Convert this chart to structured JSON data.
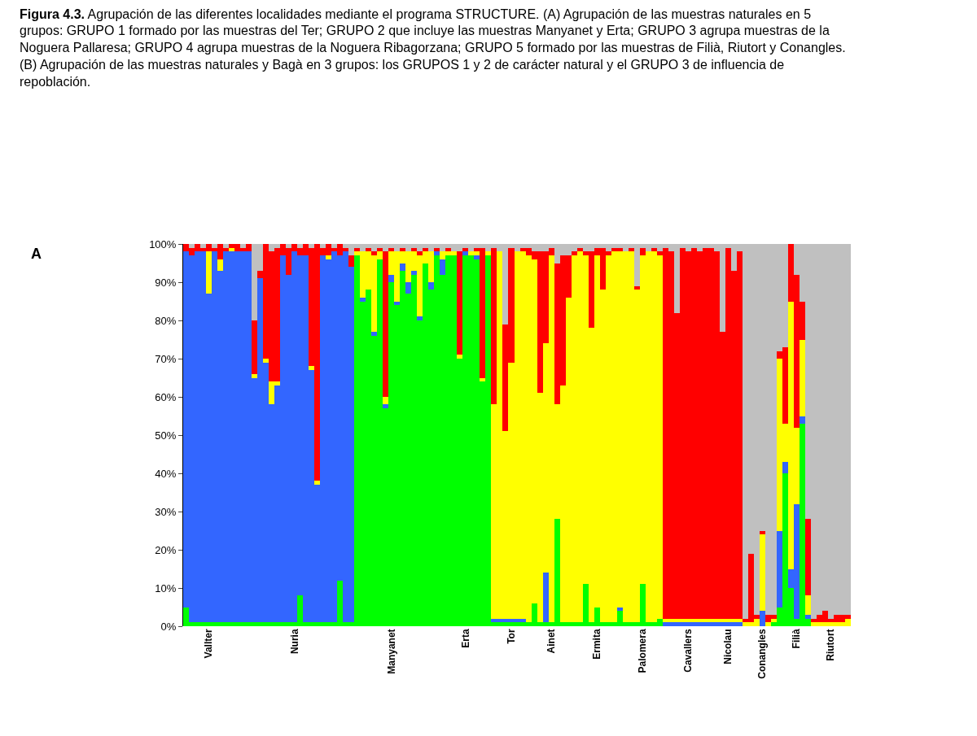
{
  "chart_data": {
    "type": "bar",
    "stacked": true,
    "title": "Figura 4.3. Agrupación de las diferentes localidades mediante el programa STRUCTURE. (A) Agrupación de las muestras naturales en 5 grupos: GRUPO 1 formado por las muestras del Ter; GRUPO 2 que incluye las muestras Manyanet y Erta; GRUPO 3 agrupa muestras de la Noguera Pallaresa; GRUPO 4 agrupa muestras de la Noguera Ribagorzana; GRUPO 5 formado por las muestras de Filià, Riutort y Conangles. (B) Agrupación de las muestras naturales y Bagà en 3 grupos: los GRUPOS 1 y 2 de carácter natural y el GRUPO 3 de influencia de repoblación.",
    "annotations": [
      "A"
    ],
    "categories": [
      null,
      null,
      null,
      null,
      "Vallter",
      null,
      null,
      null,
      null,
      null,
      null,
      null,
      null,
      null,
      null,
      null,
      null,
      null,
      null,
      "Nuria",
      null,
      null,
      null,
      null,
      null,
      null,
      null,
      null,
      null,
      null,
      null,
      null,
      null,
      null,
      null,
      null,
      "Manyanet",
      null,
      null,
      null,
      null,
      null,
      null,
      null,
      null,
      null,
      null,
      null,
      null,
      "Erta",
      null,
      null,
      null,
      null,
      null,
      null,
      null,
      "Tor",
      null,
      null,
      null,
      null,
      null,
      null,
      "Ainet",
      null,
      null,
      null,
      null,
      null,
      null,
      null,
      "Ermita",
      null,
      null,
      null,
      null,
      null,
      null,
      null,
      "Palomera",
      null,
      null,
      null,
      null,
      null,
      null,
      null,
      "Cavallers",
      null,
      null,
      null,
      null,
      null,
      null,
      "Nicolau",
      null,
      null,
      null,
      null,
      null,
      "Conangles",
      null,
      null,
      null,
      null,
      null,
      "Filià",
      null,
      null,
      null,
      null,
      null,
      "Riutort",
      null,
      null,
      null
    ],
    "series": [
      {
        "color": "#00ff00",
        "values": [
          5,
          1,
          1,
          1,
          1,
          1,
          1,
          1,
          1,
          1,
          1,
          1,
          1,
          1,
          1,
          1,
          1,
          1,
          1,
          1,
          8,
          1,
          1,
          1,
          1,
          1,
          1,
          12,
          1,
          1,
          97,
          85,
          88,
          76,
          96,
          57,
          90,
          84,
          93,
          87,
          92,
          80,
          95,
          88,
          97,
          92,
          97,
          97,
          70,
          97,
          97,
          96,
          64,
          97,
          1,
          1,
          1,
          1,
          1,
          1,
          1,
          6,
          1,
          1,
          1,
          28,
          1,
          1,
          1,
          1,
          11,
          1,
          5,
          1,
          1,
          1,
          4,
          1,
          1,
          1,
          11,
          1,
          1,
          2,
          0,
          0,
          0,
          0,
          0,
          0,
          0,
          0,
          0,
          0,
          0,
          0,
          0,
          0,
          0,
          0,
          0,
          0,
          0,
          1,
          5,
          40,
          10,
          2,
          53,
          2,
          0,
          0,
          0,
          0,
          0,
          0,
          0
        ]
      },
      {
        "color": "#3366ff",
        "values": [
          93,
          96,
          97,
          97,
          86,
          97,
          92,
          97,
          97,
          97,
          97,
          97,
          64,
          90,
          68,
          57,
          62,
          96,
          91,
          97,
          89,
          96,
          66,
          36,
          96,
          95,
          97,
          85,
          97,
          93,
          0,
          1,
          0,
          1,
          0,
          1,
          2,
          1,
          2,
          3,
          1,
          1,
          0,
          2,
          1,
          4,
          0,
          0,
          0,
          1,
          0,
          1,
          0,
          0,
          1,
          1,
          1,
          1,
          1,
          1,
          0,
          0,
          0,
          13,
          0,
          0,
          0,
          0,
          0,
          0,
          0,
          0,
          0,
          0,
          0,
          0,
          1,
          0,
          0,
          0,
          0,
          0,
          0,
          0,
          1,
          1,
          1,
          1,
          1,
          1,
          1,
          1,
          1,
          1,
          1,
          1,
          1,
          1,
          0,
          0,
          0,
          4,
          0,
          0,
          20,
          3,
          5,
          30,
          2,
          1,
          0,
          0,
          0,
          0,
          0,
          0,
          0
        ]
      },
      {
        "color": "#ffff00",
        "values": [
          0,
          0,
          0,
          0,
          11,
          0,
          3,
          0,
          1,
          0,
          0,
          0,
          1,
          0,
          1,
          6,
          1,
          0,
          0,
          0,
          0,
          0,
          1,
          1,
          0,
          1,
          0,
          0,
          0,
          0,
          1,
          12,
          10,
          20,
          2,
          2,
          6,
          13,
          3,
          8,
          5,
          16,
          3,
          8,
          0,
          2,
          1,
          1,
          1,
          0,
          1,
          1,
          1,
          1,
          56,
          96,
          49,
          67,
          96,
          96,
          96,
          90,
          60,
          60,
          96,
          30,
          62,
          85,
          96,
          97,
          86,
          77,
          92,
          87,
          96,
          97,
          93,
          97,
          97,
          87,
          86,
          97,
          97,
          95,
          1,
          1,
          1,
          1,
          1,
          1,
          1,
          1,
          1,
          1,
          1,
          1,
          1,
          1,
          1,
          1,
          2,
          20,
          1,
          1,
          45,
          10,
          70,
          20,
          20,
          5,
          1,
          1,
          1,
          1,
          1,
          1,
          2
        ]
      },
      {
        "color": "#ff0000",
        "values": [
          2,
          2,
          2,
          1,
          2,
          1,
          4,
          1,
          1,
          2,
          1,
          2,
          14,
          2,
          30,
          34,
          35,
          3,
          7,
          2,
          2,
          3,
          31,
          62,
          2,
          3,
          1,
          3,
          1,
          3,
          1,
          0,
          1,
          1,
          1,
          38,
          1,
          0,
          1,
          0,
          1,
          1,
          1,
          0,
          1,
          0,
          1,
          0,
          27,
          1,
          0,
          1,
          34,
          0,
          41,
          0,
          28,
          30,
          0,
          1,
          2,
          2,
          37,
          24,
          2,
          37,
          34,
          11,
          1,
          1,
          1,
          20,
          2,
          11,
          1,
          1,
          1,
          0,
          1,
          1,
          2,
          0,
          1,
          1,
          97,
          96,
          80,
          97,
          96,
          97,
          96,
          97,
          97,
          96,
          75,
          97,
          91,
          96,
          1,
          18,
          1,
          1,
          2,
          1,
          2,
          20,
          15,
          40,
          10,
          20,
          1,
          2,
          3,
          1,
          2,
          2,
          1
        ]
      },
      {
        "color": "#c0c0c0",
        "values": [
          0,
          1,
          0,
          1,
          0,
          1,
          0,
          1,
          0,
          0,
          1,
          0,
          20,
          7,
          0,
          2,
          1,
          0,
          1,
          0,
          1,
          0,
          1,
          0,
          1,
          0,
          1,
          0,
          1,
          3,
          1,
          2,
          1,
          2,
          1,
          2,
          1,
          2,
          1,
          2,
          1,
          2,
          1,
          2,
          1,
          2,
          1,
          2,
          2,
          1,
          2,
          1,
          1,
          2,
          1,
          2,
          21,
          1,
          2,
          1,
          1,
          2,
          2,
          2,
          1,
          5,
          3,
          3,
          2,
          1,
          2,
          2,
          1,
          1,
          2,
          1,
          1,
          2,
          1,
          11,
          1,
          2,
          1,
          2,
          1,
          2,
          18,
          1,
          2,
          1,
          2,
          1,
          1,
          2,
          23,
          1,
          7,
          2,
          98,
          81,
          97,
          75,
          97,
          97,
          28,
          27,
          0,
          8,
          15,
          72,
          98,
          97,
          96,
          98,
          97,
          97,
          97
        ]
      }
    ],
    "ylim": [
      0,
      100
    ],
    "yticks": [
      {
        "value": 0,
        "label": "0%"
      },
      {
        "value": 10,
        "label": "10%"
      },
      {
        "value": 20,
        "label": "20%"
      },
      {
        "value": 30,
        "label": "30%"
      },
      {
        "value": 40,
        "label": "40%"
      },
      {
        "value": 50,
        "label": "50%"
      },
      {
        "value": 60,
        "label": "60%"
      },
      {
        "value": 70,
        "label": "70%"
      },
      {
        "value": 80,
        "label": "80%"
      },
      {
        "value": 90,
        "label": "90%"
      },
      {
        "value": 100,
        "label": "100%"
      }
    ]
  }
}
